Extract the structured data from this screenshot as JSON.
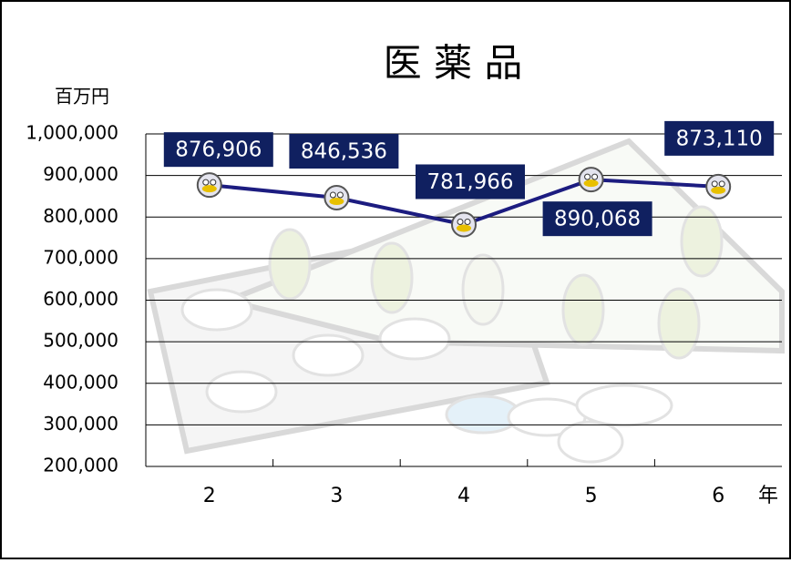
{
  "chart_data": {
    "type": "line",
    "title": "医 薬 品",
    "y_label": "百万円",
    "x_label": "年",
    "categories": [
      "2",
      "3",
      "4",
      "5",
      "6"
    ],
    "values": [
      876906,
      846536,
      781966,
      890068,
      873110
    ],
    "value_labels": [
      "876,906",
      "846,536",
      "781,966",
      "890,068",
      "873,110"
    ],
    "color": "#1c1c80",
    "ylim": [
      200000,
      1000000
    ],
    "yticks": [
      {
        "value": 200000,
        "label": "200,000"
      },
      {
        "value": 300000,
        "label": "300,000"
      },
      {
        "value": 400000,
        "label": "400,000"
      },
      {
        "value": 500000,
        "label": "500,000"
      },
      {
        "value": 600000,
        "label": "600,000"
      },
      {
        "value": 700000,
        "label": "700,000"
      },
      {
        "value": 800000,
        "label": "800,000"
      },
      {
        "value": 900000,
        "label": "900,000"
      },
      {
        "value": 1000000,
        "label": "1,000,000"
      }
    ],
    "grid": true
  }
}
